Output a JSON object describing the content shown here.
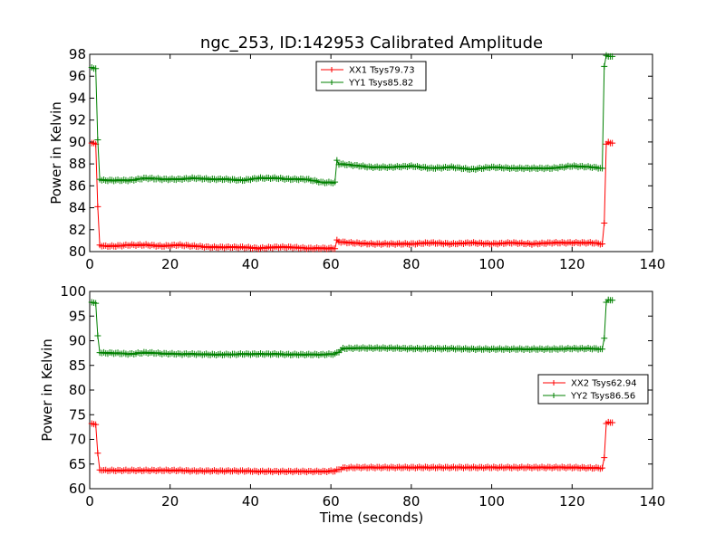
{
  "title": "ngc_253, ID:142953 Calibrated Amplitude",
  "chart_data": [
    {
      "type": "line",
      "title": "ngc_253, ID:142953 Calibrated Amplitude",
      "xlabel": "",
      "ylabel": "Power in Kelvin",
      "xlim": [
        0,
        140
      ],
      "ylim": [
        80,
        98
      ],
      "xticks": [
        "0",
        "20",
        "40",
        "60",
        "80",
        "100",
        "120",
        "140"
      ],
      "yticks": [
        "80",
        "82",
        "84",
        "86",
        "88",
        "90",
        "92",
        "94",
        "96",
        "98"
      ],
      "legend_position": "top-center",
      "series": [
        {
          "name": "XX1 Tsys79.73",
          "color": "#ff0000",
          "x": [
            0.5,
            1,
            1.5,
            2,
            2.5,
            3,
            6,
            10,
            14,
            18,
            22,
            26,
            30,
            34,
            38,
            42,
            46,
            50,
            54,
            58,
            61,
            61.5,
            62,
            65,
            70,
            75,
            80,
            85,
            90,
            95,
            100,
            105,
            110,
            115,
            120,
            125,
            127.5,
            128,
            128.5,
            129,
            129.5,
            130
          ],
          "y": [
            89.9,
            89.9,
            89.8,
            84.1,
            80.6,
            80.5,
            80.5,
            80.6,
            80.6,
            80.5,
            80.6,
            80.5,
            80.4,
            80.4,
            80.4,
            80.3,
            80.4,
            80.4,
            80.3,
            80.3,
            80.3,
            81.0,
            80.9,
            80.8,
            80.7,
            80.7,
            80.7,
            80.8,
            80.7,
            80.8,
            80.7,
            80.8,
            80.7,
            80.8,
            80.8,
            80.8,
            80.7,
            82.6,
            89.8,
            90.0,
            89.9,
            89.9
          ]
        },
        {
          "name": "YY1 Tsys85.82",
          "color": "#008000",
          "x": [
            0.5,
            1,
            1.5,
            2,
            2.5,
            3,
            6,
            10,
            14,
            18,
            22,
            26,
            30,
            34,
            38,
            42,
            46,
            50,
            54,
            58,
            61,
            61.5,
            62,
            65,
            70,
            75,
            80,
            85,
            90,
            95,
            100,
            105,
            110,
            115,
            120,
            125,
            127.5,
            128,
            128.5,
            129,
            129.5,
            130
          ],
          "y": [
            96.8,
            96.7,
            96.7,
            90.2,
            86.6,
            86.5,
            86.5,
            86.5,
            86.7,
            86.6,
            86.6,
            86.7,
            86.6,
            86.6,
            86.5,
            86.7,
            86.7,
            86.6,
            86.6,
            86.3,
            86.3,
            88.3,
            88.0,
            87.9,
            87.7,
            87.7,
            87.8,
            87.6,
            87.7,
            87.5,
            87.7,
            87.6,
            87.6,
            87.6,
            87.8,
            87.7,
            87.6,
            96.9,
            97.9,
            97.8,
            97.8,
            97.8
          ]
        }
      ]
    },
    {
      "type": "line",
      "title": "",
      "xlabel": "Time (seconds)",
      "ylabel": "Power in Kelvin",
      "xlim": [
        0,
        140
      ],
      "ylim": [
        60,
        100
      ],
      "xticks": [
        "0",
        "20",
        "40",
        "60",
        "80",
        "100",
        "120",
        "140"
      ],
      "yticks": [
        "60",
        "65",
        "70",
        "75",
        "80",
        "85",
        "90",
        "95",
        "100"
      ],
      "legend_position": "center-right",
      "series": [
        {
          "name": "XX2 Tsys62.94",
          "color": "#ff0000",
          "x": [
            0.5,
            1,
            1.5,
            2,
            2.5,
            3,
            6,
            10,
            14,
            18,
            22,
            26,
            30,
            34,
            38,
            42,
            46,
            50,
            54,
            58,
            61,
            62,
            63,
            66,
            70,
            75,
            80,
            85,
            90,
            95,
            100,
            105,
            110,
            115,
            120,
            125,
            127.5,
            128,
            128.5,
            129,
            129.5,
            130
          ],
          "y": [
            73.2,
            73.1,
            73.0,
            67.2,
            63.8,
            63.7,
            63.7,
            63.7,
            63.7,
            63.7,
            63.7,
            63.6,
            63.6,
            63.6,
            63.6,
            63.5,
            63.5,
            63.5,
            63.5,
            63.5,
            63.6,
            63.9,
            64.2,
            64.3,
            64.3,
            64.3,
            64.3,
            64.3,
            64.3,
            64.3,
            64.3,
            64.3,
            64.3,
            64.3,
            64.3,
            64.2,
            64.2,
            66.3,
            73.2,
            73.5,
            73.4,
            73.4
          ]
        },
        {
          "name": "YY2 Tsys86.56",
          "color": "#008000",
          "x": [
            0.5,
            1,
            1.5,
            2,
            2.5,
            3,
            6,
            10,
            14,
            18,
            22,
            26,
            30,
            34,
            38,
            42,
            46,
            50,
            54,
            58,
            61,
            62,
            63,
            66,
            70,
            75,
            80,
            85,
            90,
            95,
            100,
            105,
            110,
            115,
            120,
            125,
            127.5,
            128,
            128.5,
            129,
            129.5,
            130
          ],
          "y": [
            97.8,
            97.7,
            97.6,
            91.0,
            87.6,
            87.5,
            87.5,
            87.3,
            87.6,
            87.4,
            87.3,
            87.3,
            87.2,
            87.2,
            87.3,
            87.3,
            87.3,
            87.2,
            87.2,
            87.2,
            87.3,
            87.8,
            88.4,
            88.5,
            88.5,
            88.5,
            88.4,
            88.4,
            88.4,
            88.3,
            88.3,
            88.3,
            88.3,
            88.3,
            88.4,
            88.4,
            88.3,
            90.5,
            97.8,
            98.3,
            98.2,
            98.2
          ]
        }
      ]
    }
  ]
}
